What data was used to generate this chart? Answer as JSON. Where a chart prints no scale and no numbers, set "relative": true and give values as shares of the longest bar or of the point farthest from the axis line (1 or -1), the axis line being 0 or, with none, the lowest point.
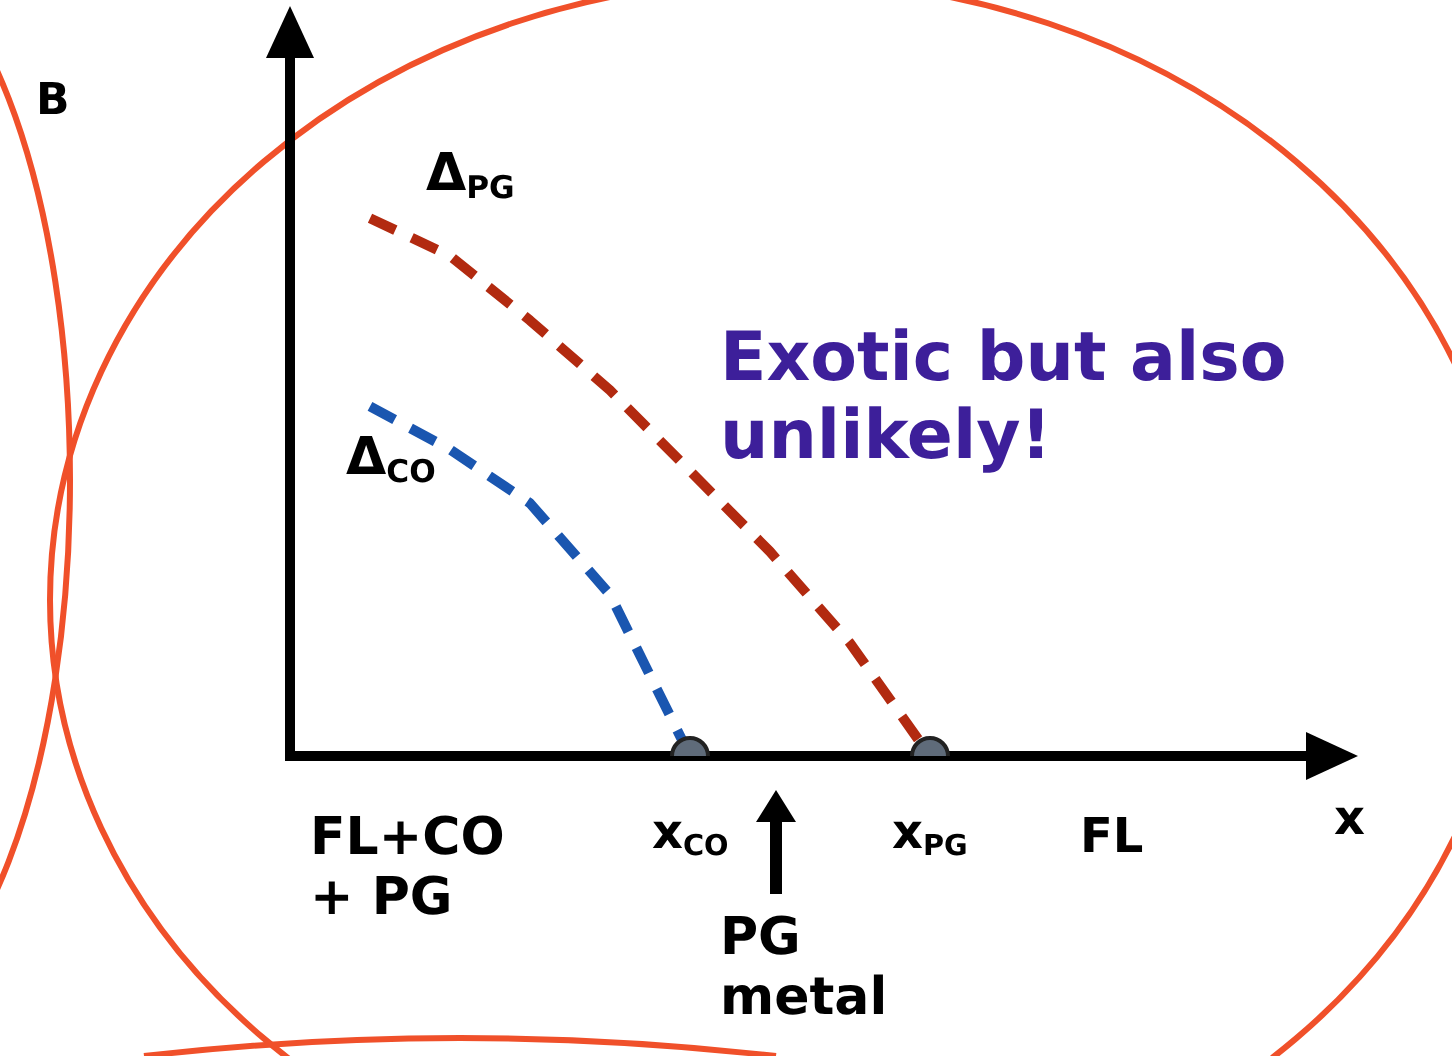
{
  "chart_data": {
    "type": "line",
    "relative": true,
    "xlabel": "x",
    "categories": [
      null,
      null,
      null,
      null,
      null,
      "x$_{CO}$",
      null,
      null,
      "x$_{PG}$",
      null,
      null,
      null,
      null,
      null
    ],
    "series": [
      {
        "name": "Δ$_{PG}$",
        "color": "#b22a10",
        "values": [
          null,
          1,
          0.93,
          0.81,
          0.68,
          0.53,
          0.38,
          0.21,
          0,
          null,
          null,
          null,
          null,
          null
        ]
      },
      {
        "name": "Δ$_{CO}$",
        "color": "#1a56b0",
        "values": [
          null,
          0.65,
          0.57,
          0.47,
          0.3,
          0,
          null,
          null,
          null,
          null,
          null,
          null,
          null,
          null
        ]
      },
      {
        "type": "scatter",
        "color": "#5f6b7a",
        "x": [
          "x$_{CO}$",
          "x$_{PG}$"
        ],
        "values": [
          0,
          0
        ],
        "marker": "circle"
      }
    ],
    "line_style": "dashed",
    "grid": false,
    "legend": false,
    "annotations": [
      "B",
      "Exotic but also unlikely!",
      "FL+CO\n+ PG",
      "FL",
      "PG\nmetal"
    ]
  }
}
